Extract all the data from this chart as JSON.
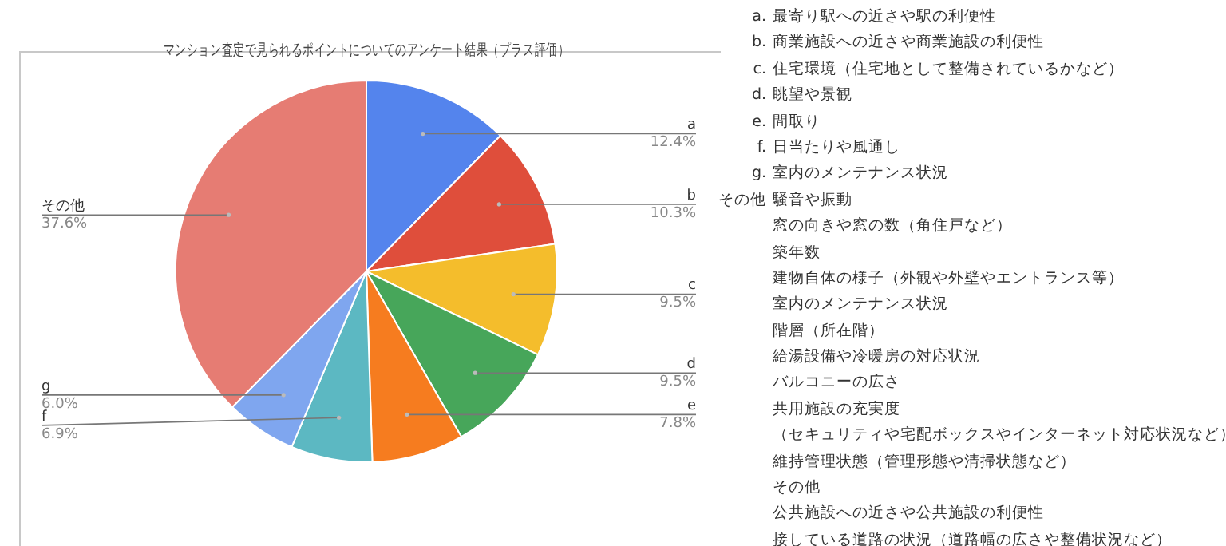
{
  "chart_data": {
    "type": "pie",
    "title": "マンション査定で見られるポイントについてのアンケート結果（プラス評価）",
    "categories": [
      "a",
      "b",
      "c",
      "d",
      "e",
      "f",
      "g",
      "その他"
    ],
    "values": [
      12.4,
      10.3,
      9.5,
      9.5,
      7.8,
      6.9,
      6.0,
      37.6
    ],
    "value_labels": [
      "12.4%",
      "10.3%",
      "9.5%",
      "9.5%",
      "7.8%",
      "6.9%",
      "6.0%",
      "37.6%"
    ],
    "colors": [
      "#5484ed",
      "#df4e3b",
      "#f4bd2c",
      "#47a65a",
      "#f67c1f",
      "#5cb8c2",
      "#7fa6ef",
      "#e67c73"
    ],
    "legend": false,
    "annotations": [
      "a. 最寄り駅への近さや駅の利便性",
      "b. 商業施設への近さや商業施設の利便性",
      "c. 住宅環境（住宅地として整備されているかなど）",
      "d. 眺望や景観",
      "e. 間取り",
      "f. 日当たりや風通し",
      "g. 室内のメンテナンス状況",
      "その他 騒音や振動",
      "窓の向きや窓の数（角住戸など）",
      "築年数",
      "建物自体の様子（外観や外壁やエントランス等）",
      "室内のメンテナンス状況",
      "階層（所在階）",
      "給湯設備や冷暖房の対応状況",
      "バルコニーの広さ",
      "共用施設の充実度",
      "（セキュリティや宅配ボックスやインターネット対応状況など）",
      "維持管理状態（管理形態や清掃状態など）",
      "その他",
      "公共施設への近さや公共施設の利便性",
      "接している道路の状況（道路幅の広さや整備状況など）"
    ]
  }
}
